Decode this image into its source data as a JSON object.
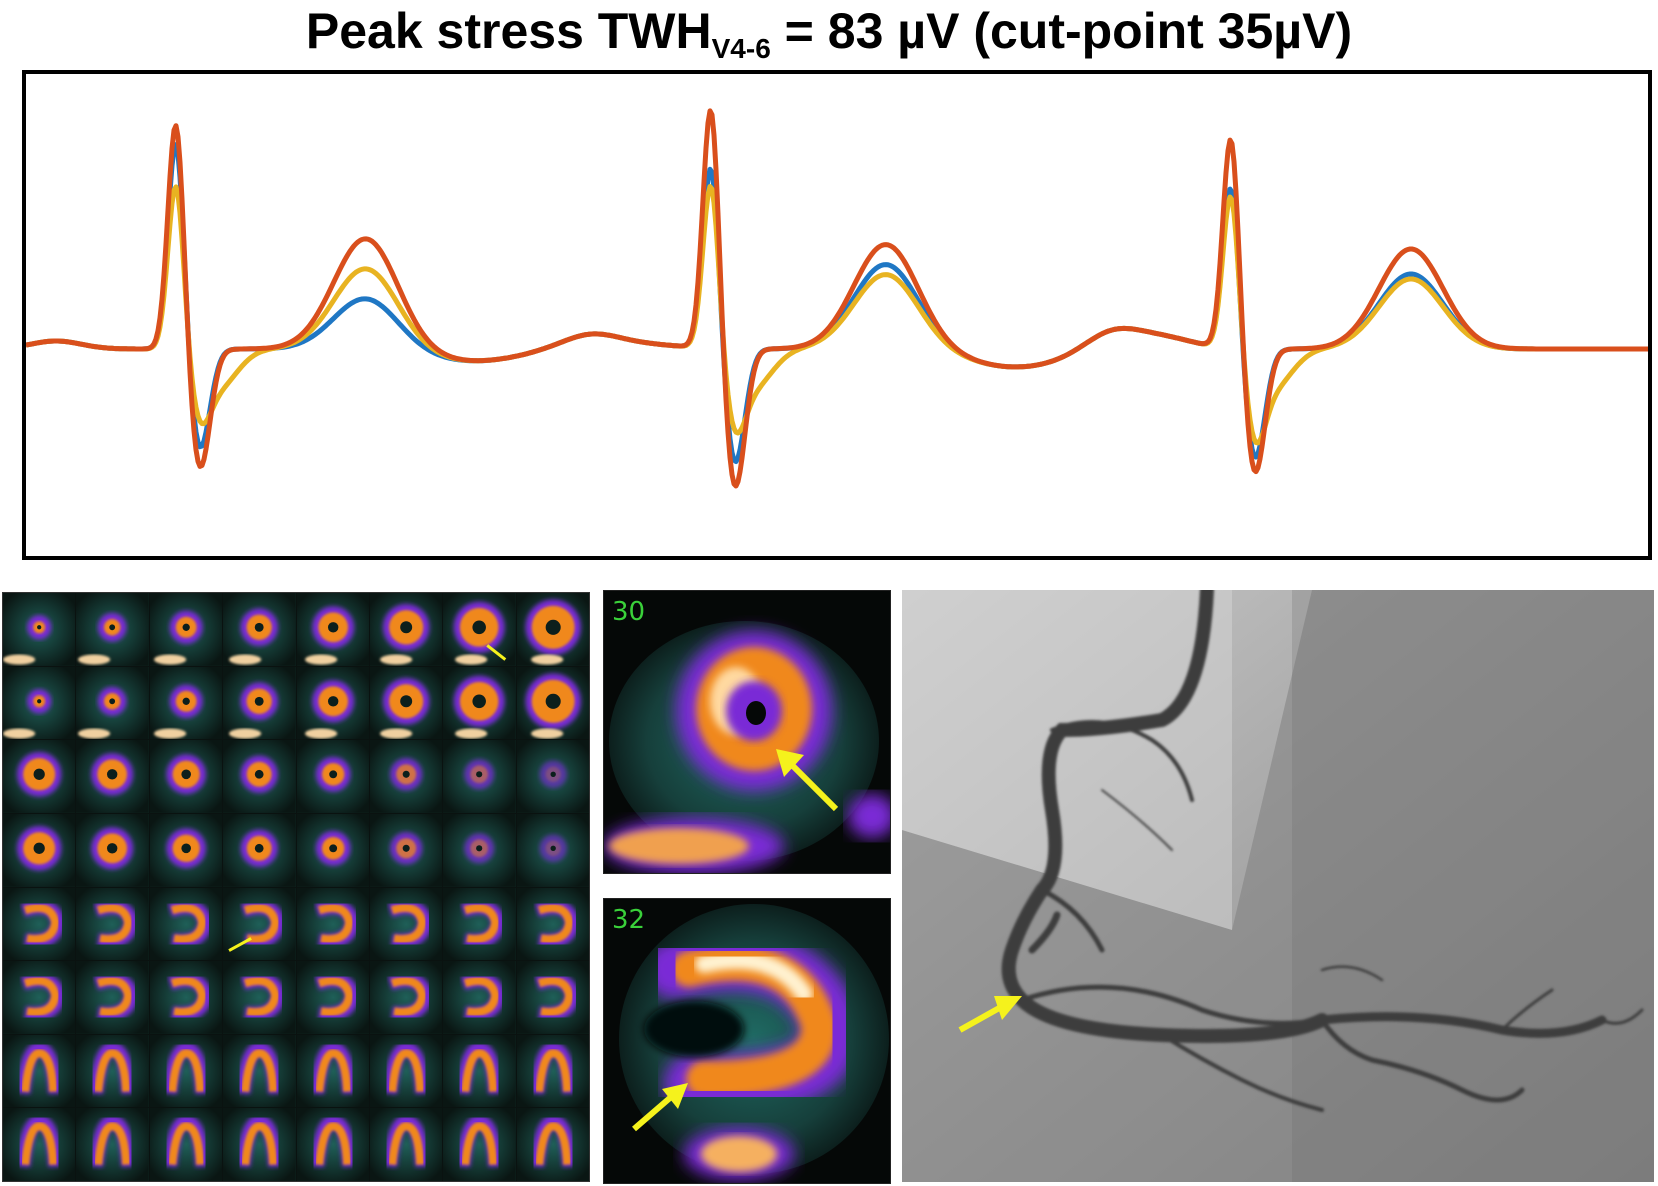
{
  "title": {
    "main": "Peak stress TWH",
    "subscript": "V4-6",
    "rest": " = 83 µV (cut-point 35µV)"
  },
  "ecg": {
    "series_colors": {
      "blue": "#1f77c4",
      "orange_red": "#d94f1c",
      "yellow": "#e8b321"
    },
    "beats": 3
  },
  "spect": {
    "highlight_color": "#f5f21c"
  },
  "zoom_panels": [
    {
      "label": "30"
    },
    {
      "label": "32"
    }
  ],
  "arrow_color": "#f5f21c"
}
